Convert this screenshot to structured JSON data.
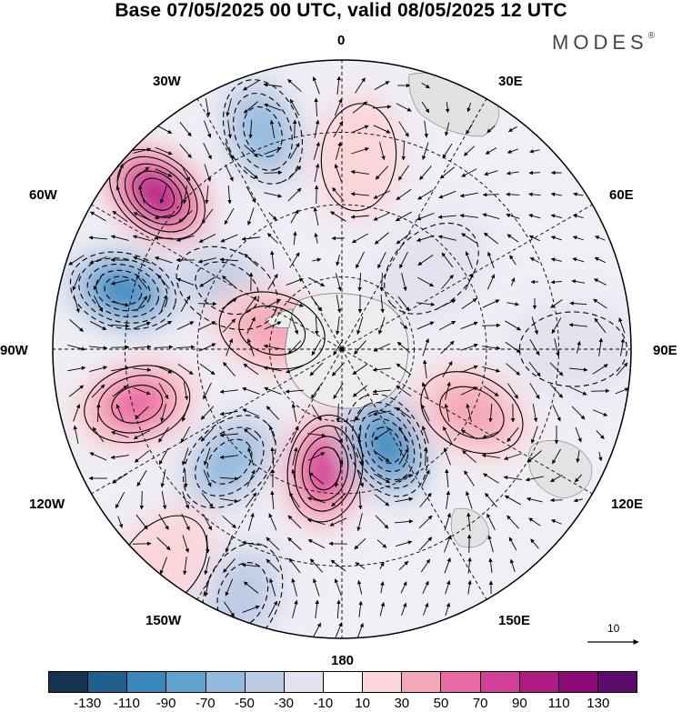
{
  "title": "Base 07/05/2025 00 UTC, valid 08/05/2025 12 UTC",
  "brand": {
    "name": "MODES",
    "mark": "®"
  },
  "lon_labels": {
    "n": "0",
    "nne": "30E",
    "ene": "60E",
    "e": "90E",
    "ese": "120E",
    "sse": "150E",
    "s": "180",
    "ssw": "150W",
    "wsw": "120W",
    "w": "90W",
    "wnw": "60W",
    "nnw": "30W"
  },
  "ref_vector": {
    "label": "10"
  },
  "colorbar": {
    "colors": [
      "#15334f",
      "#1f5f8e",
      "#3a86bd",
      "#5fa1cf",
      "#93bbde",
      "#bccbe4",
      "#e2e2f0",
      "#ffffff",
      "#fad5da",
      "#f5a8b8",
      "#ea6aa6",
      "#d23f99",
      "#b01a85",
      "#8b0a75",
      "#5c0a6b"
    ],
    "tick_labels": [
      "-130",
      "-110",
      "-90",
      "-70",
      "-50",
      "-30",
      "-10",
      "10",
      "30",
      "50",
      "70",
      "90",
      "110",
      "130"
    ]
  },
  "anomalies": [
    {
      "lon": -50,
      "colat": 50,
      "value": 110
    },
    {
      "lon": -20,
      "colat": 48,
      "value": -60
    },
    {
      "lon": -62,
      "colat": 27,
      "value": -40
    },
    {
      "lon": -75,
      "colat": 47,
      "value": -100
    },
    {
      "lon": -75,
      "colat": 15,
      "value": 40
    },
    {
      "lon": -105,
      "colat": 44,
      "value": 70
    },
    {
      "lon": -135,
      "colat": 33,
      "value": -70
    },
    {
      "lon": -172,
      "colat": 25,
      "value": 80
    },
    {
      "lon": 155,
      "colat": 22,
      "value": -100
    },
    {
      "lon": 116,
      "colat": 30,
      "value": 55
    },
    {
      "lon": 5,
      "colat": 40,
      "value": 30
    },
    {
      "lon": 48,
      "colat": 25,
      "value": -20
    },
    {
      "lon": -140,
      "colat": 58,
      "value": 30
    },
    {
      "lon": -158,
      "colat": 55,
      "value": -40
    },
    {
      "lon": 90,
      "colat": 48,
      "value": -15
    }
  ]
}
